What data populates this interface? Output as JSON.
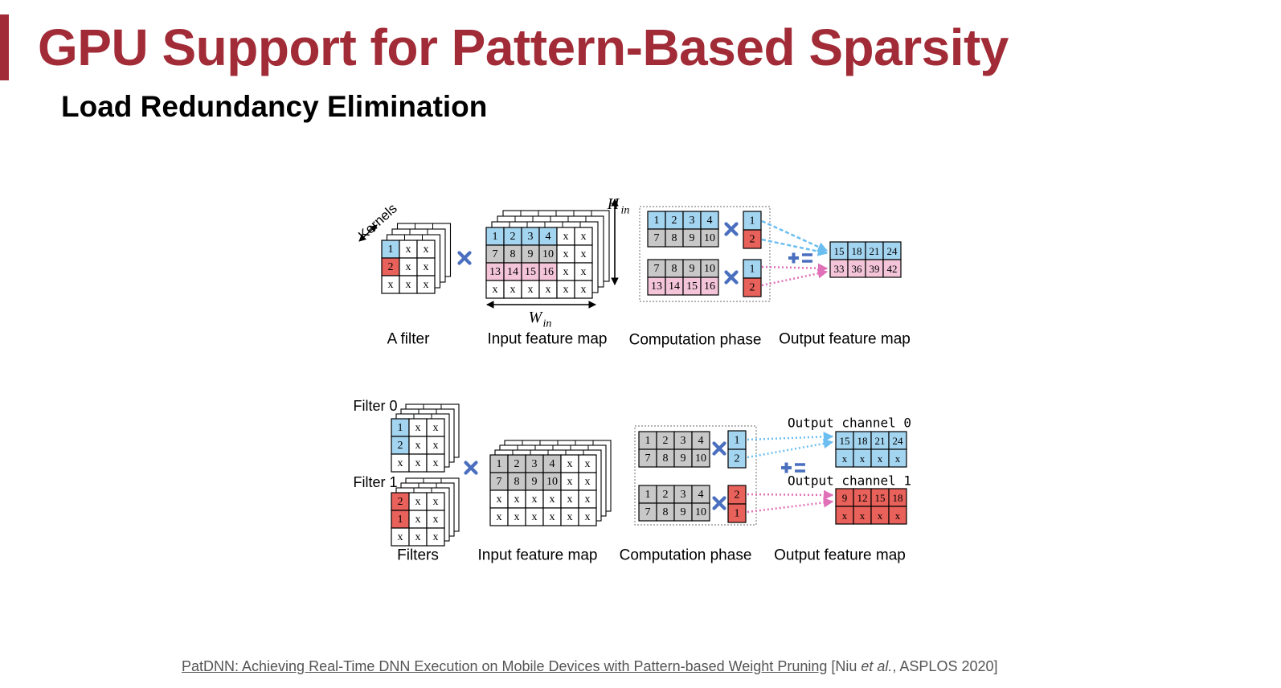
{
  "title": "GPU Support for Pattern-Based Sparsity",
  "subtitle": "Load Redundancy Elimination",
  "colors": {
    "accent": "#a12b36",
    "blue": "#a3d4f0",
    "red": "#e8615a",
    "pink": "#f4c5d9",
    "gray": "#c8c8c8",
    "operator": "#4a6fbf",
    "arrow_blue": "#6cbef0",
    "arrow_pink": "#e070b8"
  },
  "top": {
    "kernels_label": "Kernels",
    "filter_cells": [
      "1",
      "x",
      "x",
      "2",
      "x",
      "x",
      "x",
      "x",
      "x"
    ],
    "input_rows": [
      [
        "1",
        "2",
        "3",
        "4",
        "x",
        "x"
      ],
      [
        "7",
        "8",
        "9",
        "10",
        "x",
        "x"
      ],
      [
        "13",
        "14",
        "15",
        "16",
        "x",
        "x"
      ],
      [
        "x",
        "x",
        "x",
        "x",
        "x",
        "x"
      ]
    ],
    "h_label": "H",
    "h_sub": "in",
    "w_label": "W",
    "w_sub": "in",
    "comp1_rows": [
      [
        "1",
        "2",
        "3",
        "4"
      ],
      [
        "7",
        "8",
        "9",
        "10"
      ]
    ],
    "comp1_weights": [
      "1",
      "2"
    ],
    "comp2_rows": [
      [
        "7",
        "8",
        "9",
        "10"
      ],
      [
        "13",
        "14",
        "15",
        "16"
      ]
    ],
    "comp2_weights": [
      "1",
      "2"
    ],
    "output_rows": [
      [
        "15",
        "18",
        "21",
        "24"
      ],
      [
        "33",
        "36",
        "39",
        "42"
      ]
    ],
    "captions": [
      "A filter",
      "Input feature map",
      "Computation phase",
      "Output feature map"
    ]
  },
  "bottom": {
    "filter0_label": "Filter 0",
    "filter0_cells": [
      "1",
      "x",
      "x",
      "2",
      "x",
      "x",
      "x",
      "x",
      "x"
    ],
    "filter1_label": "Filter 1",
    "filter1_cells": [
      "2",
      "x",
      "x",
      "1",
      "x",
      "x",
      "x",
      "x",
      "x"
    ],
    "input_rows": [
      [
        "1",
        "2",
        "3",
        "4",
        "x",
        "x"
      ],
      [
        "7",
        "8",
        "9",
        "10",
        "x",
        "x"
      ],
      [
        "x",
        "x",
        "x",
        "x",
        "x",
        "x"
      ],
      [
        "x",
        "x",
        "x",
        "x",
        "x",
        "x"
      ]
    ],
    "comp1_rows": [
      [
        "1",
        "2",
        "3",
        "4"
      ],
      [
        "7",
        "8",
        "9",
        "10"
      ]
    ],
    "comp1_weights": [
      "1",
      "2"
    ],
    "comp2_rows": [
      [
        "1",
        "2",
        "3",
        "4"
      ],
      [
        "7",
        "8",
        "9",
        "10"
      ]
    ],
    "comp2_weights": [
      "2",
      "1"
    ],
    "out0_label": "Output channel 0",
    "out0_rows": [
      [
        "15",
        "18",
        "21",
        "24"
      ],
      [
        "x",
        "x",
        "x",
        "x"
      ]
    ],
    "out1_label": "Output channel 1",
    "out1_rows": [
      [
        "9",
        "12",
        "15",
        "18"
      ],
      [
        "x",
        "x",
        "x",
        "x"
      ]
    ],
    "captions": [
      "Filters",
      "Input feature map",
      "Computation phase",
      "Output feature map"
    ]
  },
  "citation": {
    "link_text": "PatDNN: Achieving Real-Time DNN Execution on Mobile Devices with Pattern-based Weight Pruning",
    "open": " [Niu ",
    "etal": "et al.",
    "rest": ", ASPLOS 2020]"
  }
}
